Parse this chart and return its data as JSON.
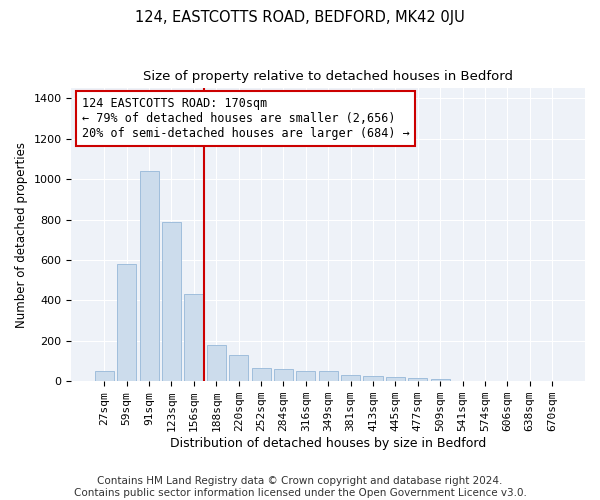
{
  "title": "124, EASTCOTTS ROAD, BEDFORD, MK42 0JU",
  "subtitle": "Size of property relative to detached houses in Bedford",
  "xlabel": "Distribution of detached houses by size in Bedford",
  "ylabel": "Number of detached properties",
  "categories": [
    "27sqm",
    "59sqm",
    "91sqm",
    "123sqm",
    "156sqm",
    "188sqm",
    "220sqm",
    "252sqm",
    "284sqm",
    "316sqm",
    "349sqm",
    "381sqm",
    "413sqm",
    "445sqm",
    "477sqm",
    "509sqm",
    "541sqm",
    "574sqm",
    "606sqm",
    "638sqm",
    "670sqm"
  ],
  "values": [
    50,
    580,
    1040,
    790,
    430,
    180,
    130,
    65,
    60,
    50,
    50,
    30,
    25,
    20,
    15,
    10,
    0,
    0,
    0,
    0,
    0
  ],
  "bar_color": "#ccdcec",
  "bar_edge_color": "#a0bedc",
  "vline_color": "#cc0000",
  "annotation_text": "124 EASTCOTTS ROAD: 170sqm\n← 79% of detached houses are smaller (2,656)\n20% of semi-detached houses are larger (684) →",
  "annotation_box_color": "#ffffff",
  "annotation_box_edge": "#cc0000",
  "ylim": [
    0,
    1450
  ],
  "yticks": [
    0,
    200,
    400,
    600,
    800,
    1000,
    1200,
    1400
  ],
  "background_color": "#ffffff",
  "plot_bg_color": "#eef2f8",
  "grid_color": "#ffffff",
  "footer": "Contains HM Land Registry data © Crown copyright and database right 2024.\nContains public sector information licensed under the Open Government Licence v3.0.",
  "title_fontsize": 10.5,
  "subtitle_fontsize": 9.5,
  "xlabel_fontsize": 9,
  "ylabel_fontsize": 8.5,
  "tick_fontsize": 8,
  "annotation_fontsize": 8.5,
  "footer_fontsize": 7.5
}
